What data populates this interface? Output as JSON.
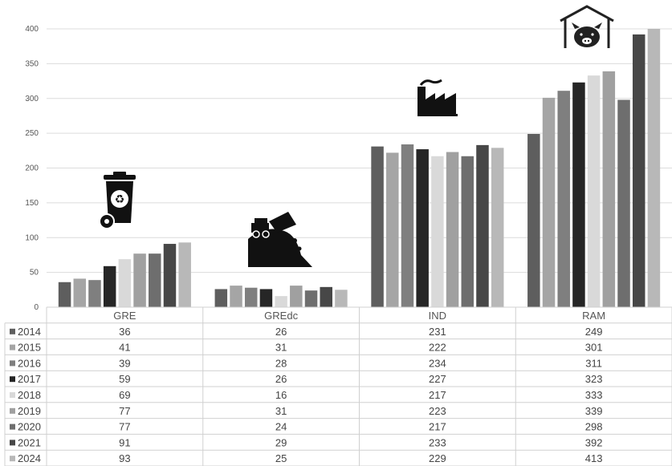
{
  "chart_data": {
    "type": "bar",
    "categories": [
      "GRE",
      "GREdc",
      "IND",
      "RAM"
    ],
    "series": [
      {
        "name": "2014",
        "values": [
          36,
          26,
          231,
          249
        ],
        "color": "#5e5e5e"
      },
      {
        "name": "2015",
        "values": [
          41,
          31,
          222,
          301
        ],
        "color": "#a5a5a5"
      },
      {
        "name": "2016",
        "values": [
          39,
          28,
          234,
          311
        ],
        "color": "#7f7f7f"
      },
      {
        "name": "2017",
        "values": [
          59,
          26,
          227,
          323
        ],
        "color": "#262626"
      },
      {
        "name": "2018",
        "values": [
          69,
          16,
          217,
          333
        ],
        "color": "#d9d9d9"
      },
      {
        "name": "2019",
        "values": [
          77,
          31,
          223,
          339
        ],
        "color": "#a0a0a0"
      },
      {
        "name": "2020",
        "values": [
          77,
          24,
          217,
          298
        ],
        "color": "#6e6e6e"
      },
      {
        "name": "2021",
        "values": [
          91,
          29,
          233,
          392
        ],
        "color": "#474747"
      },
      {
        "name": "2024",
        "values": [
          93,
          25,
          229,
          413
        ],
        "color": "#b8b8b8"
      }
    ],
    "ylim": [
      0,
      400
    ],
    "yticks": [
      0,
      50,
      100,
      150,
      200,
      250,
      300,
      350,
      400
    ],
    "grid": true,
    "data_table": true,
    "icons": [
      "recycling-bin-icon",
      "dump-truck-icon",
      "factory-icon",
      "pig-barn-icon"
    ]
  }
}
